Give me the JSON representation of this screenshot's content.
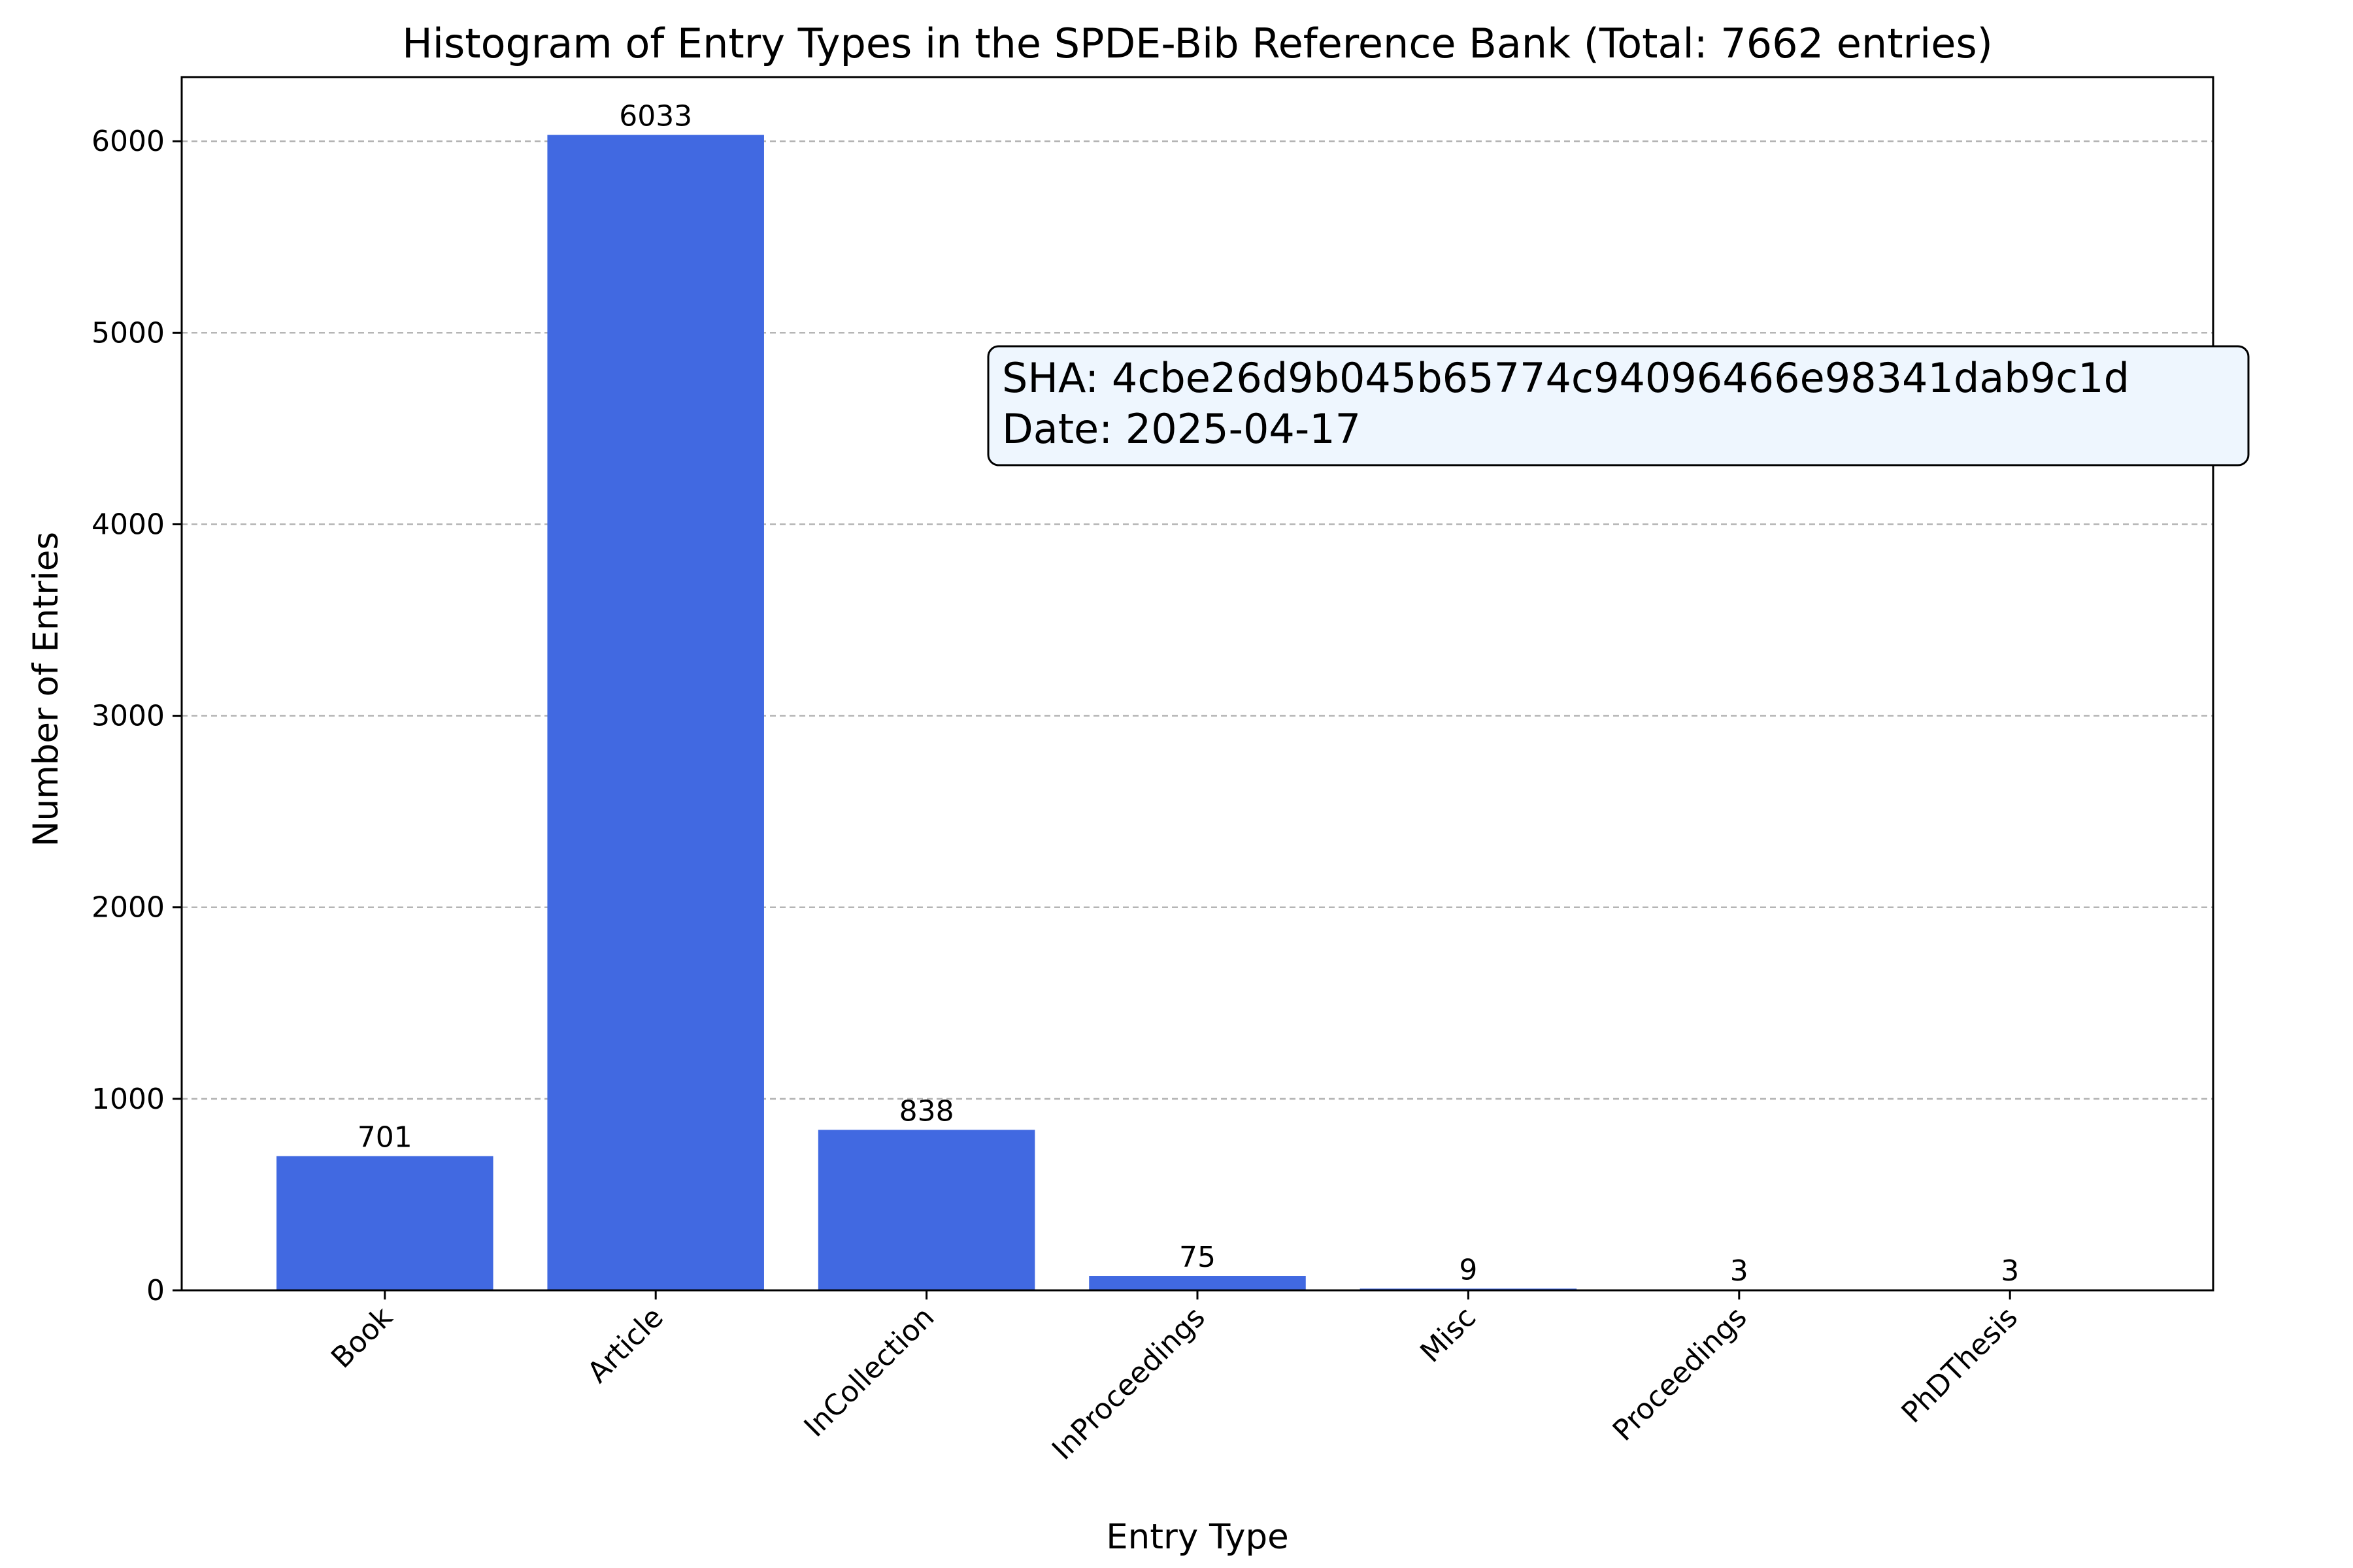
{
  "chart_data": {
    "type": "bar",
    "title": "Histogram of Entry Types in the SPDE-Bib Reference Bank (Total: 7662 entries)",
    "xlabel": "Entry Type",
    "ylabel": "Number of Entries",
    "categories": [
      "Book",
      "Article",
      "InCollection",
      "InProceedings",
      "Misc",
      "Proceedings",
      "PhDThesis"
    ],
    "values": [
      701,
      6033,
      838,
      75,
      9,
      3,
      3
    ],
    "bar_labels": [
      "701",
      "6033",
      "838",
      "75",
      "9",
      "3",
      "3"
    ],
    "ylim": [
      0,
      6335
    ],
    "yticks": [
      0,
      1000,
      2000,
      3000,
      4000,
      5000,
      6000
    ],
    "ytick_labels": [
      "0",
      "1000",
      "2000",
      "3000",
      "4000",
      "5000",
      "6000"
    ],
    "grid": "y-dashed",
    "legend": "none",
    "bar_color": "#4169e1",
    "grid_color": "#b0b0b0",
    "annotation": {
      "lines": [
        "SHA: 4cbe26d9b045b65774c94096466e98341dab9c1d",
        "Date: 2025-04-17"
      ],
      "background": "#eef6fe",
      "border": "#000000"
    }
  }
}
